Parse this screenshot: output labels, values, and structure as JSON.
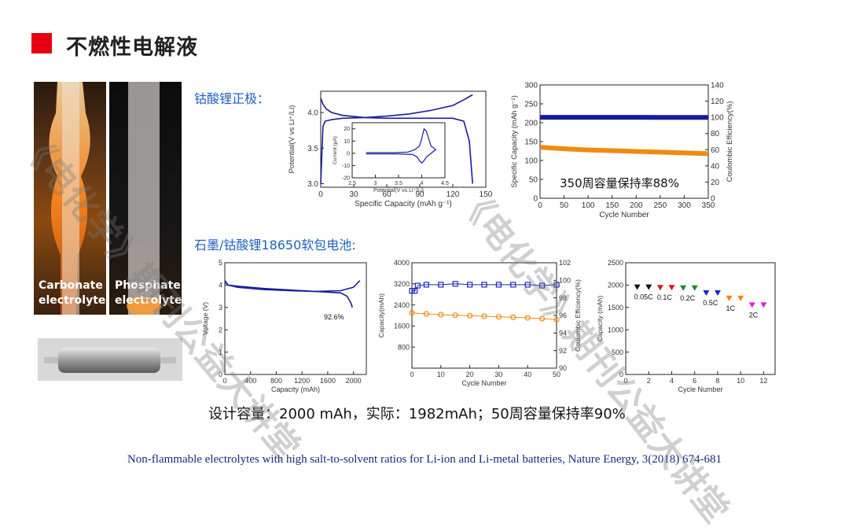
{
  "slide": {
    "title": "不燃性电解液",
    "label_cathode": "钴酸锂正极：",
    "label_pouch": "石墨/钴酸锂18650软包电池:",
    "photo_left_caption": [
      "Carbonate",
      "electrolyte"
    ],
    "photo_right_caption": [
      "Phosphate",
      "electrolyte"
    ],
    "summary": "设计容量：2000 mAh，实际：1982mAh；50周容量保持率90%",
    "citation": "Non-flammable electrolytes with high salt-to-solvent ratios for Li-ion and Li-metal batteries, Nature Energy, 3(2018) 674-681",
    "watermark": "《电化学》期刊公益大讲堂",
    "colors": {
      "accent_red": "#e60012",
      "label_blue": "#1f5fbf",
      "curve_blue": "#1a1aa0",
      "orange": "#f08a10"
    }
  },
  "chart_data": [
    {
      "id": "cathode-voltage",
      "type": "line",
      "xlabel": "Specific Capacity (mAh g⁻¹)",
      "ylabel": "Potential(V vs Li⁺/Li)",
      "xlim": [
        0,
        150
      ],
      "ylim": [
        2.95,
        4.3
      ],
      "xticks": [
        0,
        30,
        60,
        90,
        120,
        150
      ],
      "yticks": [
        3.0,
        3.5,
        4.0
      ],
      "series": [
        {
          "x": [
            0,
            2,
            5,
            10,
            20,
            40,
            60,
            80,
            100,
            120,
            130,
            135,
            138
          ],
          "y": [
            4.2,
            4.12,
            4.05,
            4.0,
            3.96,
            3.93,
            3.92,
            3.92,
            3.92,
            3.92,
            3.88,
            3.6,
            3.0
          ]
        },
        {
          "x": [
            0,
            2,
            4,
            10,
            20,
            40,
            60,
            80,
            100,
            120,
            130,
            138
          ],
          "y": [
            3.0,
            3.8,
            3.88,
            3.9,
            3.92,
            3.93,
            3.95,
            3.98,
            4.03,
            4.1,
            4.18,
            4.25
          ]
        }
      ],
      "inset": {
        "type": "line",
        "xlabel": "Potential(V vs Li⁺/Li)",
        "ylabel": "Current (μA)",
        "xlim": [
          2.5,
          4.5
        ],
        "ylim": [
          -20,
          25
        ],
        "xticks": [
          2.5,
          3.0,
          3.5,
          4.0,
          4.5
        ],
        "yticks": [
          -20,
          -10,
          0,
          10,
          20
        ],
        "series": [
          {
            "x": [
              2.8,
              3.4,
              3.7,
              3.85,
              3.95,
              4.0,
              4.05,
              4.1,
              4.2,
              4.3,
              4.2,
              4.1,
              4.05,
              4.0,
              3.95,
              3.9,
              3.8,
              3.5,
              2.8
            ],
            "y": [
              0.5,
              0.5,
              1,
              3,
              6,
              12,
              20,
              18,
              6,
              3,
              0,
              -3,
              -6,
              -8,
              -6,
              -3,
              -1,
              -0.5,
              -0.5
            ]
          }
        ]
      }
    },
    {
      "id": "cathode-cycling",
      "type": "scatter",
      "xlabel": "Cycle Number",
      "ylabel": "Specific Capacity (mAh g⁻¹)",
      "ylabel_right": "Coulombic  Efficiency(%)",
      "xlim": [
        0,
        350
      ],
      "ylim": [
        0,
        300
      ],
      "ylim_right": [
        0,
        140
      ],
      "xticks": [
        0,
        50,
        100,
        150,
        200,
        250,
        300,
        350
      ],
      "yticks": [
        0,
        50,
        100,
        150,
        200,
        250,
        300
      ],
      "yticks_right": [
        0,
        20,
        40,
        60,
        80,
        100,
        120,
        140
      ],
      "series": [
        {
          "axis": "right",
          "x": [
            0,
            50,
            100,
            150,
            200,
            250,
            300,
            350
          ],
          "y": [
            100,
            100,
            100,
            100,
            100,
            99.8,
            99.8,
            99.8
          ]
        },
        {
          "axis": "left",
          "x": [
            0,
            50,
            100,
            150,
            200,
            250,
            300,
            350
          ],
          "y": [
            135,
            131,
            128,
            126,
            124,
            122,
            120,
            118
          ]
        }
      ],
      "annotation": "350周容量保持率88%"
    },
    {
      "id": "pouch-voltage",
      "type": "line",
      "xlabel": "Capacity (mAh)",
      "ylabel": "Voltage (V)",
      "xlim": [
        0,
        2200
      ],
      "ylim": [
        0,
        5
      ],
      "xticks": [
        0,
        400,
        800,
        1200,
        1600,
        2000
      ],
      "yticks": [
        0,
        1,
        2,
        3,
        4,
        5
      ],
      "series": [
        {
          "x": [
            0,
            50,
            200,
            600,
            1000,
            1400,
            1800,
            2000,
            2100
          ],
          "y": [
            4.15,
            4.0,
            3.9,
            3.8,
            3.75,
            3.72,
            3.75,
            3.9,
            4.2
          ]
        },
        {
          "x": [
            0,
            50,
            200,
            600,
            1000,
            1400,
            1800,
            1900,
            1960,
            1982
          ],
          "y": [
            4.2,
            4.0,
            3.95,
            3.85,
            3.78,
            3.72,
            3.65,
            3.5,
            3.2,
            3.0
          ]
        }
      ],
      "annotation": "92.6%"
    },
    {
      "id": "pouch-cycling",
      "type": "scatter",
      "xlabel": "Cycle Number",
      "ylabel": "Capacity(mAh)",
      "ylabel_right": "Coulombic  Efficiency(%)",
      "xlim": [
        0,
        50
      ],
      "ylim": [
        0,
        4000
      ],
      "ylim_right": [
        90,
        102
      ],
      "xticks": [
        0,
        10,
        20,
        30,
        40,
        50
      ],
      "yticks": [
        800,
        1600,
        2400,
        3200,
        4000
      ],
      "yticks_right": [
        90,
        92,
        94,
        96,
        98,
        100,
        102
      ],
      "series": [
        {
          "axis": "right",
          "x": [
            0,
            1,
            2,
            5,
            10,
            15,
            20,
            25,
            30,
            35,
            40,
            45,
            50
          ],
          "y": [
            98.8,
            98.8,
            99.4,
            99.5,
            99.5,
            99.6,
            99.5,
            99.5,
            99.5,
            99.5,
            99.5,
            99.4,
            99.5
          ]
        },
        {
          "axis": "left",
          "x": [
            0,
            5,
            10,
            15,
            20,
            25,
            30,
            35,
            40,
            45,
            50
          ],
          "y": [
            2100,
            2060,
            2030,
            2010,
            1990,
            1970,
            1950,
            1930,
            1910,
            1880,
            1840
          ]
        }
      ]
    },
    {
      "id": "pouch-rate",
      "type": "scatter",
      "xlabel": "Cycle Number",
      "ylabel": "Capacity (mAh)",
      "xlim": [
        0,
        13
      ],
      "ylim": [
        0,
        2500
      ],
      "xticks": [
        0,
        2,
        4,
        6,
        8,
        10,
        12
      ],
      "yticks": [
        0,
        500,
        1000,
        1500,
        2000,
        2500
      ],
      "series": [
        {
          "name": "0.05C",
          "x": [
            1,
            2
          ],
          "y": [
            1960,
            1960
          ],
          "color": "#111111"
        },
        {
          "name": "0.1C",
          "x": [
            3,
            4
          ],
          "y": [
            1950,
            1950
          ],
          "color": "#d01818"
        },
        {
          "name": "0.2C",
          "x": [
            5,
            6
          ],
          "y": [
            1940,
            1940
          ],
          "color": "#158a2a"
        },
        {
          "name": "0.5C",
          "x": [
            7,
            8
          ],
          "y": [
            1830,
            1830
          ],
          "color": "#1a28c0"
        },
        {
          "name": "1C",
          "x": [
            9,
            10
          ],
          "y": [
            1710,
            1710
          ],
          "color": "#f08a10"
        },
        {
          "name": "2C",
          "x": [
            11,
            12
          ],
          "y": [
            1560,
            1560
          ],
          "color": "#e020d8"
        }
      ]
    }
  ]
}
